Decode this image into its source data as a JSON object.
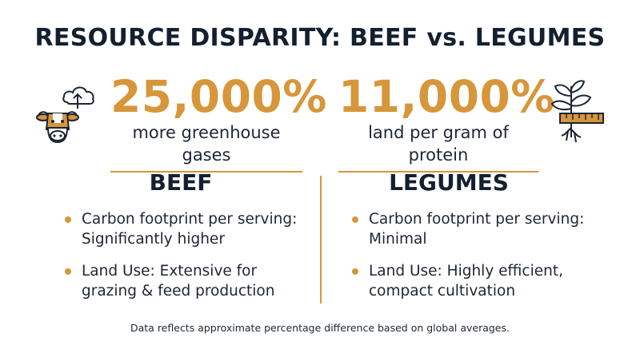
{
  "title": "RESOURCE DISPARITY: BEEF vs. LEGUMES",
  "stats": {
    "left": {
      "value": "25,000%",
      "label": "more greenhouse gases",
      "icon": "cow-with-upload-cloud-icon"
    },
    "right": {
      "value": "11,000%",
      "label": "land per gram of protein",
      "icon": "sprout-with-ruler-icon"
    }
  },
  "beef": {
    "heading": "BEEF",
    "items": [
      {
        "text": "Carbon footprint per serving: Significantly higher"
      },
      {
        "text": "Land Use: Extensive for grazing & feed production"
      }
    ]
  },
  "legumes": {
    "heading": "LEGUMES",
    "items": [
      {
        "text": "Carbon footprint per serving: Minimal"
      },
      {
        "text": "Land Use: Highly efficient, compact cultivation"
      }
    ]
  },
  "footnote": "Data reflects approximate percentage difference based on global averages.",
  "colors": {
    "accent": "#d7963a",
    "text": "#14202f"
  }
}
